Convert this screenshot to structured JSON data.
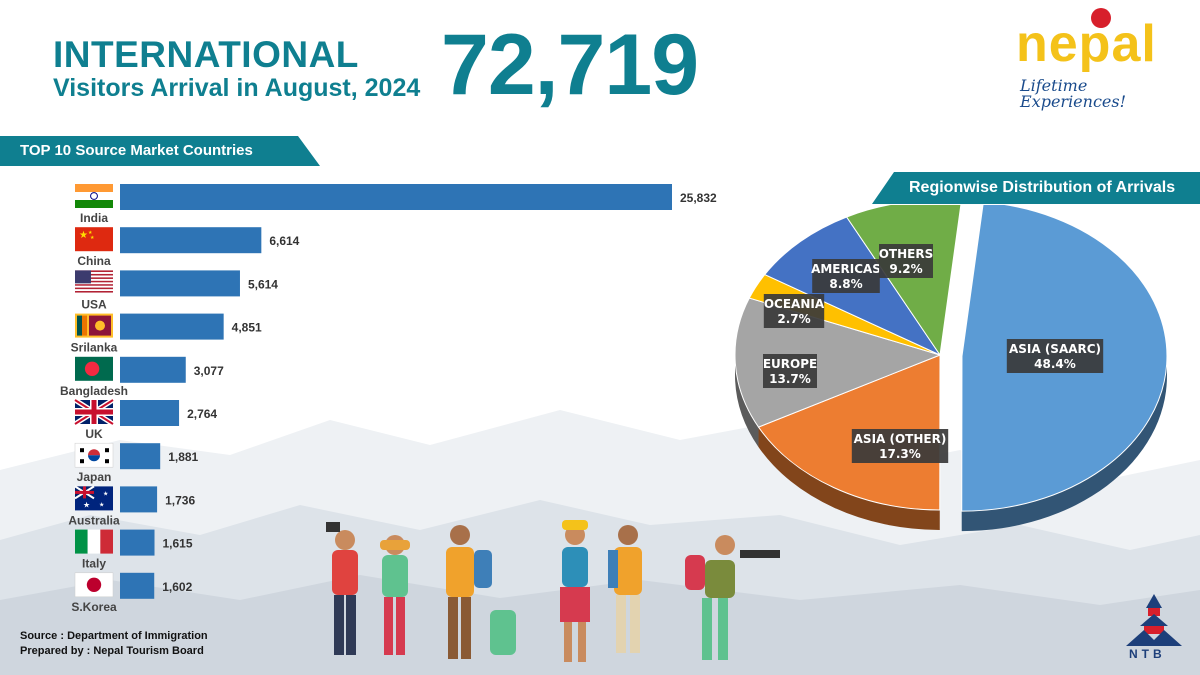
{
  "header": {
    "title_line1": "INTERNATIONAL",
    "title_line2": "Visitors Arrival in August, 2024",
    "total": "72,719"
  },
  "logo": {
    "word": "nepal",
    "tagline": "Lifetime Experiences!"
  },
  "left_banner": "TOP 10 Source Market Countries",
  "right_banner": "Regionwise Distribution of Arrivals",
  "footer": {
    "source": "Source : Department of Immigration",
    "prepared": "Prepared by : Nepal Tourism Board"
  },
  "ntb_label": "NTB",
  "colors": {
    "teal": "#0f7f90",
    "bar": "#2e74b5",
    "banner": "#0f7f90"
  },
  "chart_data": [
    {
      "type": "bar",
      "orientation": "horizontal",
      "title": "TOP 10 Source Market Countries",
      "categories": [
        "India",
        "China",
        "USA",
        "Srilanka",
        "Bangladesh",
        "UK",
        "Japan",
        "Australia",
        "Italy",
        "S.Korea"
      ],
      "values": [
        25832,
        6614,
        5614,
        4851,
        3077,
        2764,
        1881,
        1736,
        1615,
        1602
      ],
      "value_labels": [
        "25,832",
        "6,614",
        "5,614",
        "4,851",
        "3,077",
        "2,764",
        "1,881",
        "1,736",
        "1,615",
        "1,602"
      ],
      "flags": [
        "india-flag",
        "china-flag",
        "usa-flag",
        "srilanka-flag",
        "bangladesh-flag",
        "uk-flag",
        "korea-flag",
        "australia-flag",
        "italy-flag",
        "japan-flag"
      ],
      "grid": false
    },
    {
      "type": "pie",
      "title": "Regionwise Distribution of Arrivals",
      "categories": [
        "ASIA (SAARC)",
        "ASIA (OTHER)",
        "EUROPE",
        "OCEANIA",
        "AMERICAS",
        "OTHERS"
      ],
      "values": [
        48.4,
        17.3,
        13.7,
        2.7,
        8.8,
        9.2
      ],
      "value_labels": [
        "48.4%",
        "17.3%",
        "13.7%",
        "2.7%",
        "8.8%",
        "9.2%"
      ],
      "colors": [
        "#5b9bd5",
        "#ed7d31",
        "#a5a5a5",
        "#ffc000",
        "#4472c4",
        "#70ad47"
      ],
      "exploded": "ASIA (SAARC)"
    }
  ]
}
